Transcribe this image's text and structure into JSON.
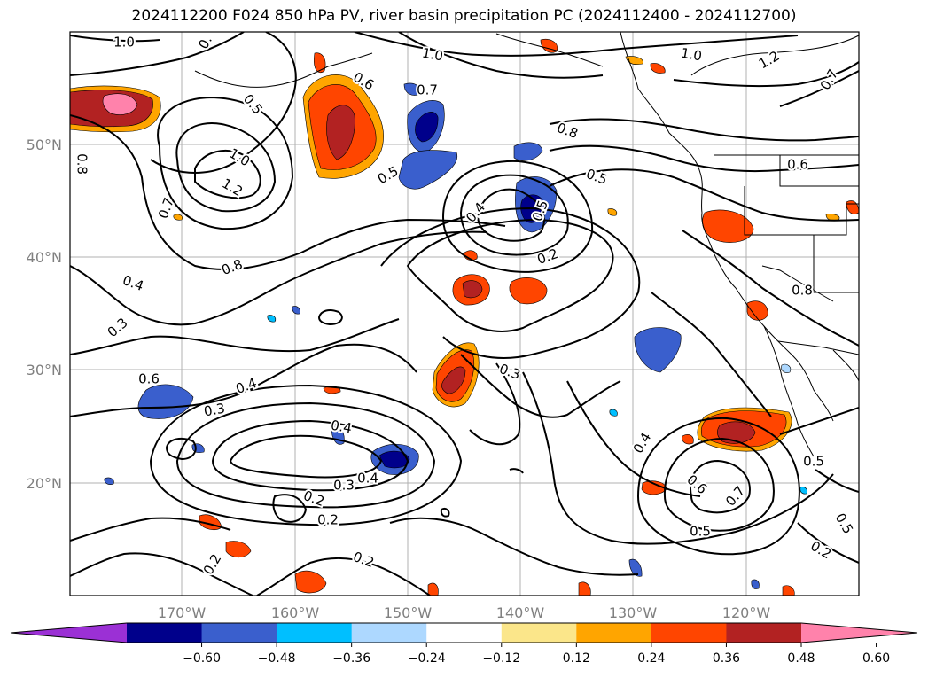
{
  "title": "2024112200 F024 850 hPa PV, river basin precipitation PC (2024112400 - 2024112700)",
  "map": {
    "lat_ticks": [
      "50°N",
      "40°N",
      "30°N",
      "20°N"
    ],
    "lon_ticks": [
      "170°W",
      "160°W",
      "150°W",
      "140°W",
      "130°W",
      "120°W"
    ]
  },
  "contour_labels": [
    "1.0",
    "0.",
    "1.0",
    "1.0",
    "1.2",
    "0.7",
    "0.6",
    "0.5",
    "0.7",
    "0.8",
    "0.5",
    "1.0",
    "1.2",
    "0.8",
    "0.7",
    "0.8",
    "0.4",
    "0.5",
    "0.6",
    "0.2",
    "0.8",
    "0.5",
    "0.4",
    "0.3",
    "0.3",
    "0.4",
    "0.6",
    "0.3",
    "0.4",
    "0.3",
    "0.4",
    "0.2",
    "0.2",
    "0.2",
    "0.2",
    "0.4",
    "0.6",
    "0.7",
    "0.5",
    "0.5",
    "0.2",
    "0.5"
  ],
  "colorbar": {
    "colors": [
      "#9b30d5",
      "#00008b",
      "#3a5fcd",
      "#00bfff",
      "#add8ff",
      "#ffffff",
      "#fbe68a",
      "#ffa500",
      "#ff4500",
      "#b22222",
      "#ff82ab"
    ],
    "tick_labels": [
      "−0.60",
      "−0.48",
      "−0.36",
      "−0.24",
      "−0.12",
      "0.12",
      "0.24",
      "0.36",
      "0.48",
      "0.60"
    ]
  }
}
